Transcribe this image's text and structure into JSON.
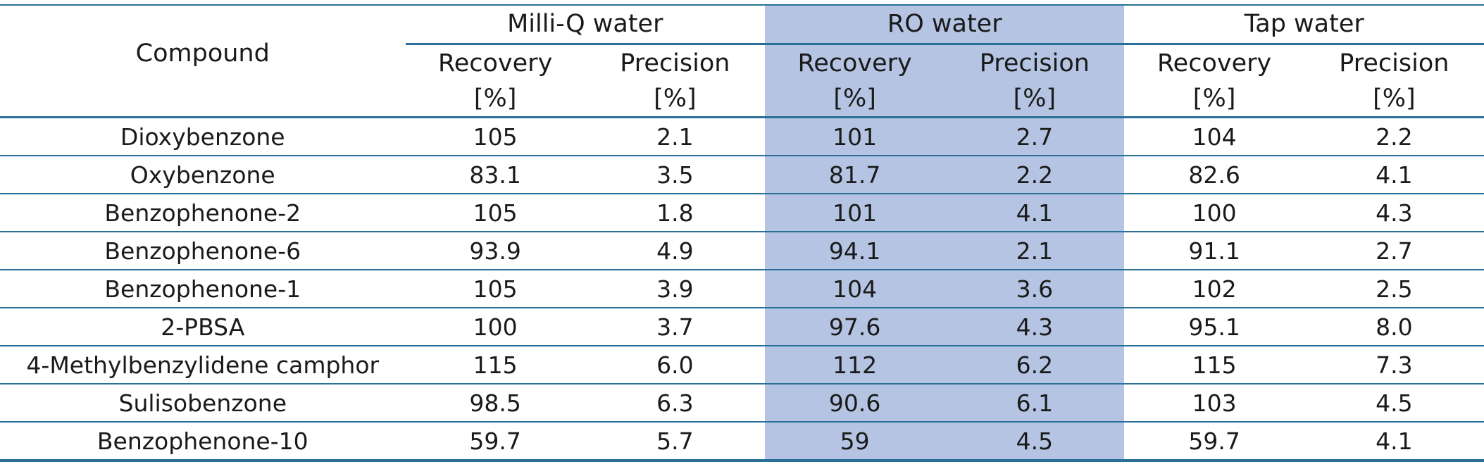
{
  "table": {
    "compound_header": "Compound",
    "groups": [
      {
        "label": "Milli-Q water",
        "shaded": false
      },
      {
        "label": "RO water",
        "shaded": true
      },
      {
        "label": "Tap water",
        "shaded": false
      }
    ],
    "sub_headers": {
      "recovery_line1": "Recovery",
      "recovery_line2": "[%]",
      "precision_line1": "Precision",
      "precision_line2": "[%]"
    },
    "rows": [
      {
        "compound": "Dioxybenzone",
        "values": [
          "105",
          "2.1",
          "101",
          "2.7",
          "104",
          "2.2"
        ]
      },
      {
        "compound": "Oxybenzone",
        "values": [
          "83.1",
          "3.5",
          "81.7",
          "2.2",
          "82.6",
          "4.1"
        ]
      },
      {
        "compound": "Benzophenone-2",
        "values": [
          "105",
          "1.8",
          "101",
          "4.1",
          "100",
          "4.3"
        ]
      },
      {
        "compound": "Benzophenone-6",
        "values": [
          "93.9",
          "4.9",
          "94.1",
          "2.1",
          "91.1",
          "2.7"
        ]
      },
      {
        "compound": "Benzophenone-1",
        "values": [
          "105",
          "3.9",
          "104",
          "3.6",
          "102",
          "2.5"
        ]
      },
      {
        "compound": "2-PBSA",
        "values": [
          "100",
          "3.7",
          "97.6",
          "4.3",
          "95.1",
          "8.0"
        ]
      },
      {
        "compound": "4-Methylbenzylidene camphor",
        "values": [
          "115",
          "6.0",
          "112",
          "6.2",
          "115",
          "7.3"
        ]
      },
      {
        "compound": "Sulisobenzone",
        "values": [
          "98.5",
          "6.3",
          "90.6",
          "6.1",
          "103",
          "4.5"
        ]
      },
      {
        "compound": "Benzophenone-10",
        "values": [
          "59.7",
          "5.7",
          "59",
          "4.5",
          "59.7",
          "4.1"
        ]
      }
    ]
  },
  "colors": {
    "rule": "#2a6f97",
    "shade": "#b4c4e2"
  }
}
